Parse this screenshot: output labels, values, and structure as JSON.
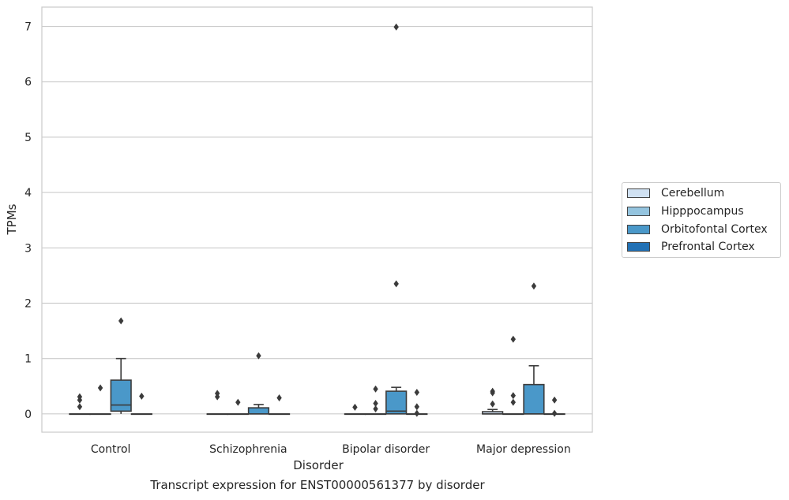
{
  "chart_data": {
    "type": "box",
    "title": "",
    "xlabel": "Disorder",
    "ylabel": "TPMs",
    "caption": "Transcript expression for ENST00000561377 by disorder",
    "ylim": [
      -0.33,
      7.35
    ],
    "yticks": [
      0,
      1,
      2,
      3,
      4,
      5,
      6,
      7
    ],
    "grid": "horizontal",
    "legend_position": "right",
    "categories": [
      "Control",
      "Schizophrenia",
      "Bipolar disorder",
      "Major depression"
    ],
    "series": [
      {
        "name": "Cerebellum",
        "color": "#d0e1f2",
        "boxes": [
          {
            "q1": 0,
            "median": 0,
            "q3": 0,
            "whisker_low": 0,
            "whisker_high": 0,
            "outliers": [
              0.13,
              0.25,
              0.31
            ]
          },
          {
            "q1": 0,
            "median": 0,
            "q3": 0,
            "whisker_low": 0,
            "whisker_high": 0,
            "outliers": [
              0.31,
              0.37
            ]
          },
          {
            "q1": 0,
            "median": 0,
            "q3": 0,
            "whisker_low": 0,
            "whisker_high": 0,
            "outliers": [
              0.12
            ]
          },
          {
            "q1": 0,
            "median": 0,
            "q3": 0.04,
            "whisker_low": 0,
            "whisker_high": 0.08,
            "outliers": [
              0.18,
              0.38,
              0.41
            ]
          }
        ]
      },
      {
        "name": "Hipppocampus",
        "color": "#94c4df",
        "boxes": [
          {
            "q1": 0,
            "median": 0,
            "q3": 0,
            "whisker_low": 0,
            "whisker_high": 0,
            "outliers": [
              0.47
            ]
          },
          {
            "q1": 0,
            "median": 0,
            "q3": 0,
            "whisker_low": 0,
            "whisker_high": 0,
            "outliers": [
              0.21
            ]
          },
          {
            "q1": 0,
            "median": 0,
            "q3": 0,
            "whisker_low": 0,
            "whisker_high": 0,
            "outliers": [
              0.09,
              0.19,
              0.45
            ]
          },
          {
            "q1": 0,
            "median": 0,
            "q3": 0,
            "whisker_low": 0,
            "whisker_high": 0,
            "outliers": [
              0.21,
              0.33,
              1.35
            ]
          }
        ]
      },
      {
        "name": "Orbitofontal Cortex",
        "color": "#4a98c9",
        "boxes": [
          {
            "q1": 0.05,
            "median": 0.16,
            "q3": 0.61,
            "whisker_low": 0,
            "whisker_high": 1.0,
            "outliers": [
              1.68
            ]
          },
          {
            "q1": 0,
            "median": 0,
            "q3": 0.11,
            "whisker_low": 0,
            "whisker_high": 0.17,
            "outliers": [
              1.05
            ]
          },
          {
            "q1": 0,
            "median": 0.05,
            "q3": 0.41,
            "whisker_low": 0,
            "whisker_high": 0.48,
            "outliers": [
              2.35,
              6.99
            ]
          },
          {
            "q1": 0,
            "median": 0,
            "q3": 0.53,
            "whisker_low": 0,
            "whisker_high": 0.87,
            "outliers": [
              2.31
            ]
          }
        ]
      },
      {
        "name": "Prefrontal Cortex",
        "color": "#2171b5",
        "boxes": [
          {
            "q1": 0,
            "median": 0,
            "q3": 0,
            "whisker_low": 0,
            "whisker_high": 0,
            "outliers": [
              0.32
            ]
          },
          {
            "q1": 0,
            "median": 0,
            "q3": 0,
            "whisker_low": 0,
            "whisker_high": 0,
            "outliers": [
              0.29
            ]
          },
          {
            "q1": 0,
            "median": 0,
            "q3": 0,
            "whisker_low": 0,
            "whisker_high": 0,
            "outliers": [
              0.01,
              0.13,
              0.39
            ]
          },
          {
            "q1": 0,
            "median": 0,
            "q3": 0,
            "whisker_low": 0,
            "whisker_high": 0,
            "outliers": [
              0.01,
              0.25
            ]
          }
        ]
      }
    ]
  }
}
